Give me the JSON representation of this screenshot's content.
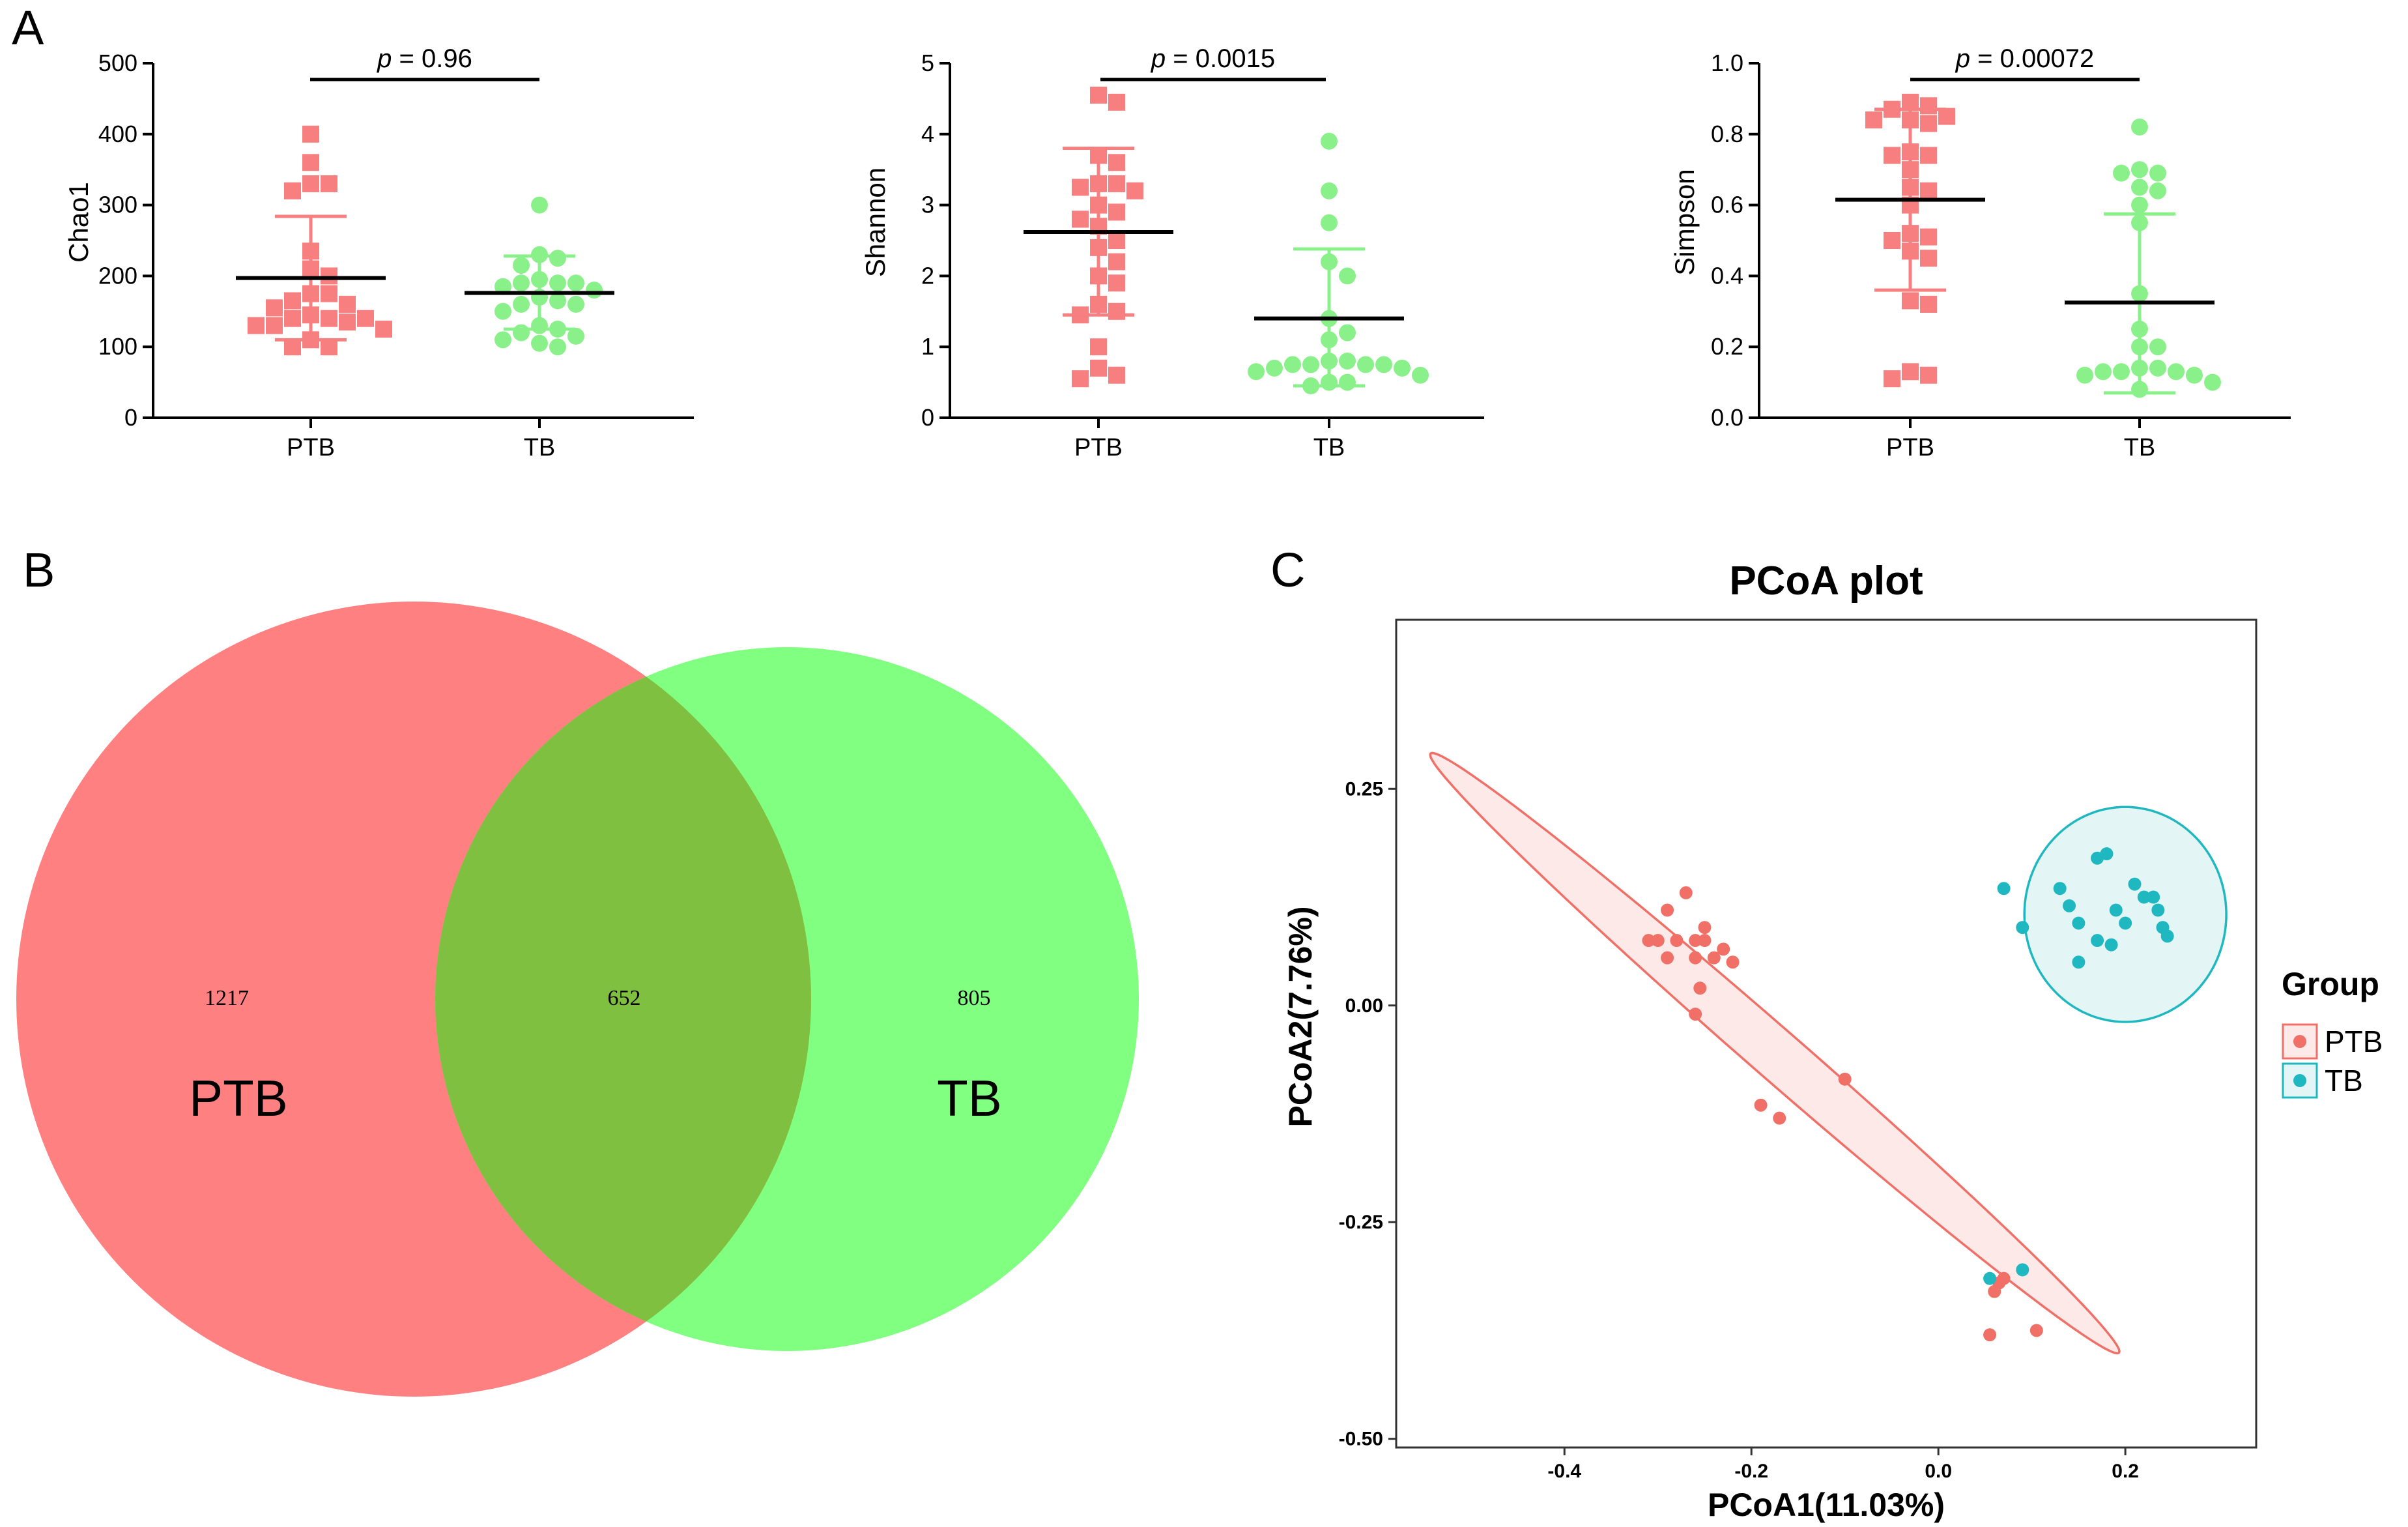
{
  "panels": {
    "a": "A",
    "b": "B",
    "c": "C"
  },
  "colors": {
    "ptb": "#F77F80",
    "tb": "#8AF08A",
    "venn_ptb": "#FF8080",
    "venn_tb": "#80FF80",
    "overlap": "#80C040",
    "pcoa_ptb": "#F07068",
    "pcoa_tb": "#20B8C0",
    "pcoa_ptb_fill": "#FDE9E8",
    "pcoa_tb_fill": "#E3F5F5"
  },
  "chart_data": [
    {
      "type": "scatter",
      "panel": "A",
      "ylabel": "Chao1",
      "ylim": [
        0,
        500
      ],
      "yticks": [
        "0",
        "100",
        "200",
        "300",
        "400",
        "500"
      ],
      "categories": [
        "PTB",
        "TB"
      ],
      "p_italic": "p",
      "p_text": " = 0.96",
      "series": [
        {
          "name": "PTB",
          "mean": 197,
          "sd_low": 110,
          "sd_high": 284,
          "values": [
            400,
            360,
            330,
            330,
            320,
            235,
            210,
            200,
            175,
            175,
            165,
            160,
            155,
            145,
            140,
            140,
            140,
            135,
            130,
            130,
            125,
            110,
            100,
            100
          ]
        },
        {
          "name": "TB",
          "mean": 176,
          "sd_low": 125,
          "sd_high": 228,
          "values": [
            300,
            230,
            225,
            215,
            195,
            190,
            190,
            190,
            185,
            180,
            170,
            165,
            160,
            160,
            150,
            130,
            125,
            120,
            115,
            110,
            105,
            100
          ]
        }
      ]
    },
    {
      "type": "scatter",
      "panel": "A",
      "ylabel": "Shannon",
      "ylim": [
        0,
        5
      ],
      "yticks": [
        "0",
        "1",
        "2",
        "3",
        "4",
        "5"
      ],
      "categories": [
        "PTB",
        "TB"
      ],
      "p_italic": "p",
      "p_text": " = 0.0015",
      "series": [
        {
          "name": "PTB",
          "mean": 2.62,
          "sd_low": 1.45,
          "sd_high": 3.8,
          "values": [
            4.55,
            4.45,
            3.7,
            3.6,
            3.3,
            3.3,
            3.25,
            3.2,
            3.0,
            2.9,
            2.8,
            2.7,
            2.5,
            2.4,
            2.2,
            2.0,
            1.9,
            1.6,
            1.5,
            1.45,
            1.0,
            0.7,
            0.6,
            0.55
          ]
        },
        {
          "name": "TB",
          "mean": 1.4,
          "sd_low": 0.45,
          "sd_high": 2.38,
          "values": [
            3.9,
            3.2,
            2.75,
            2.2,
            2.0,
            1.4,
            1.2,
            1.1,
            0.8,
            0.8,
            0.75,
            0.75,
            0.75,
            0.75,
            0.7,
            0.7,
            0.65,
            0.6,
            0.5,
            0.5,
            0.45
          ]
        }
      ]
    },
    {
      "type": "scatter",
      "panel": "A",
      "ylabel": "Simpson",
      "ylim": [
        0,
        1.0
      ],
      "yticks": [
        "0.0",
        "0.2",
        "0.4",
        "0.6",
        "0.8",
        "1.0"
      ],
      "categories": [
        "PTB",
        "TB"
      ],
      "p_italic": "p",
      "p_text": " = 0.00072",
      "series": [
        {
          "name": "PTB",
          "mean": 0.615,
          "sd_low": 0.36,
          "sd_high": 0.87,
          "values": [
            0.89,
            0.88,
            0.87,
            0.85,
            0.84,
            0.84,
            0.83,
            0.75,
            0.74,
            0.74,
            0.7,
            0.65,
            0.64,
            0.6,
            0.52,
            0.51,
            0.5,
            0.47,
            0.45,
            0.33,
            0.32,
            0.13,
            0.12,
            0.11
          ]
        },
        {
          "name": "TB",
          "mean": 0.325,
          "sd_low": 0.07,
          "sd_high": 0.575,
          "values": [
            0.82,
            0.7,
            0.69,
            0.69,
            0.65,
            0.64,
            0.6,
            0.55,
            0.35,
            0.25,
            0.2,
            0.2,
            0.14,
            0.14,
            0.13,
            0.13,
            0.13,
            0.12,
            0.12,
            0.1,
            0.08
          ]
        }
      ]
    },
    {
      "type": "venn",
      "panel": "B",
      "sets": [
        {
          "name": "PTB",
          "unique": 1217
        },
        {
          "name": "TB",
          "unique": 805
        }
      ],
      "labels": {
        "ptb_unique": "1217",
        "overlap": "652",
        "tb_unique": "805",
        "ptb": "PTB",
        "tb": "TB"
      }
    },
    {
      "type": "scatter",
      "panel": "C",
      "title": "PCoA plot",
      "xlabel": "PCoA1(11.03%)",
      "ylabel": "PCoA2(7.76%)",
      "xlim": [
        -0.58,
        0.34
      ],
      "ylim": [
        -0.51,
        0.445
      ],
      "xticks": [
        {
          "v": -0.4,
          "label": "-0.4"
        },
        {
          "v": -0.2,
          "label": "-0.2"
        },
        {
          "v": 0.0,
          "label": "0.0"
        },
        {
          "v": 0.2,
          "label": "0.2"
        }
      ],
      "yticks": [
        {
          "v": 0.25,
          "label": "0.25"
        },
        {
          "v": 0.0,
          "label": "0.00"
        },
        {
          "v": -0.25,
          "label": "-0.25"
        },
        {
          "v": -0.5,
          "label": "-0.50"
        }
      ],
      "legend": {
        "title": "Group",
        "items": [
          "PTB",
          "TB"
        ]
      },
      "ellipses": [
        {
          "group": "PTB",
          "cx": -0.175,
          "cy": -0.055,
          "a": 0.505,
          "b": 0.028,
          "angle_deg": -43.2
        },
        {
          "group": "TB",
          "cx": 0.2,
          "cy": 0.105,
          "a": 0.108,
          "b": 0.124,
          "angle_deg": 0
        }
      ],
      "series": [
        {
          "name": "PTB",
          "points": [
            [
              -0.27,
              0.13
            ],
            [
              -0.29,
              0.11
            ],
            [
              -0.25,
              0.09
            ],
            [
              -0.31,
              0.075
            ],
            [
              -0.3,
              0.075
            ],
            [
              -0.28,
              0.075
            ],
            [
              -0.26,
              0.075
            ],
            [
              -0.25,
              0.075
            ],
            [
              -0.23,
              0.065
            ],
            [
              -0.24,
              0.055
            ],
            [
              -0.22,
              0.05
            ],
            [
              -0.29,
              0.055
            ],
            [
              -0.26,
              0.055
            ],
            [
              -0.255,
              0.02
            ],
            [
              -0.26,
              -0.01
            ],
            [
              -0.1,
              -0.085
            ],
            [
              -0.19,
              -0.115
            ],
            [
              -0.17,
              -0.13
            ],
            [
              0.07,
              -0.315
            ],
            [
              0.065,
              -0.32
            ],
            [
              0.06,
              -0.33
            ],
            [
              0.055,
              -0.38
            ],
            [
              0.105,
              -0.375
            ]
          ]
        },
        {
          "name": "TB",
          "points": [
            [
              0.07,
              0.135
            ],
            [
              0.09,
              0.09
            ],
            [
              0.13,
              0.135
            ],
            [
              0.14,
              0.115
            ],
            [
              0.15,
              0.095
            ],
            [
              0.18,
              0.175
            ],
            [
              0.17,
              0.17
            ],
            [
              0.19,
              0.11
            ],
            [
              0.2,
              0.095
            ],
            [
              0.21,
              0.14
            ],
            [
              0.22,
              0.125
            ],
            [
              0.23,
              0.125
            ],
            [
              0.235,
              0.11
            ],
            [
              0.24,
              0.09
            ],
            [
              0.245,
              0.08
            ],
            [
              0.17,
              0.075
            ],
            [
              0.185,
              0.07
            ],
            [
              0.15,
              0.05
            ],
            [
              0.055,
              -0.315
            ],
            [
              0.09,
              -0.305
            ]
          ]
        }
      ]
    }
  ]
}
